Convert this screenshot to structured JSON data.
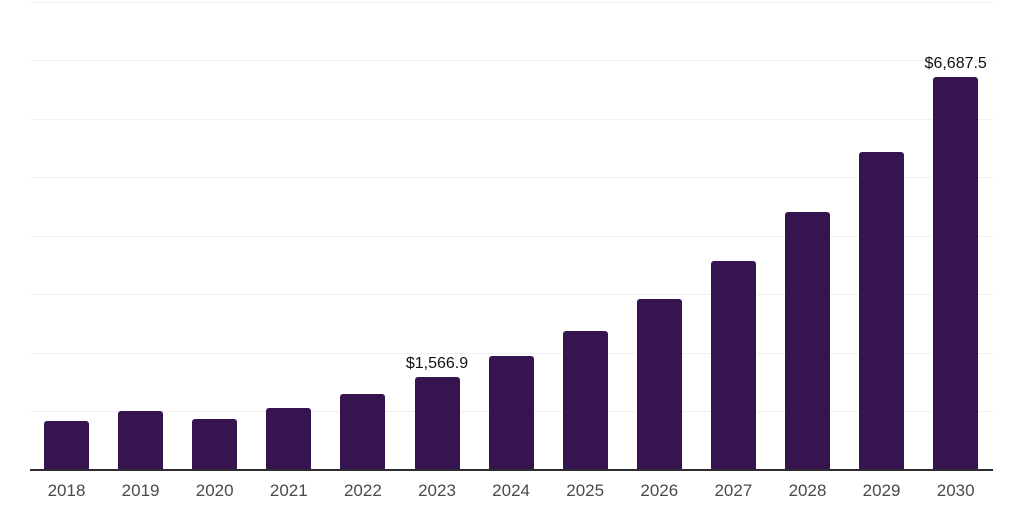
{
  "chart_data": {
    "type": "bar",
    "title": "",
    "xlabel": "",
    "ylabel": "",
    "legend": "none",
    "grid": "horizontal-light",
    "categories": [
      "2018",
      "2019",
      "2020",
      "2021",
      "2022",
      "2023",
      "2024",
      "2025",
      "2026",
      "2027",
      "2028",
      "2029",
      "2030"
    ],
    "values": [
      820,
      995,
      855,
      1045,
      1280,
      1566.9,
      1925,
      2365,
      2895,
      3545,
      4395,
      5415,
      6687.5
    ],
    "data_labels": [
      null,
      null,
      null,
      null,
      null,
      "$1,566.9",
      null,
      null,
      null,
      null,
      null,
      null,
      "$6,687.5"
    ],
    "ylim": [
      0,
      8000
    ],
    "gridline_step": 1000,
    "colors": {
      "bar": "#361450",
      "axis": "#2d2d2d",
      "gridline": "#f0f0f2",
      "tick_label": "#4a4a4a",
      "data_label": "#111111",
      "background": "#ffffff"
    }
  }
}
